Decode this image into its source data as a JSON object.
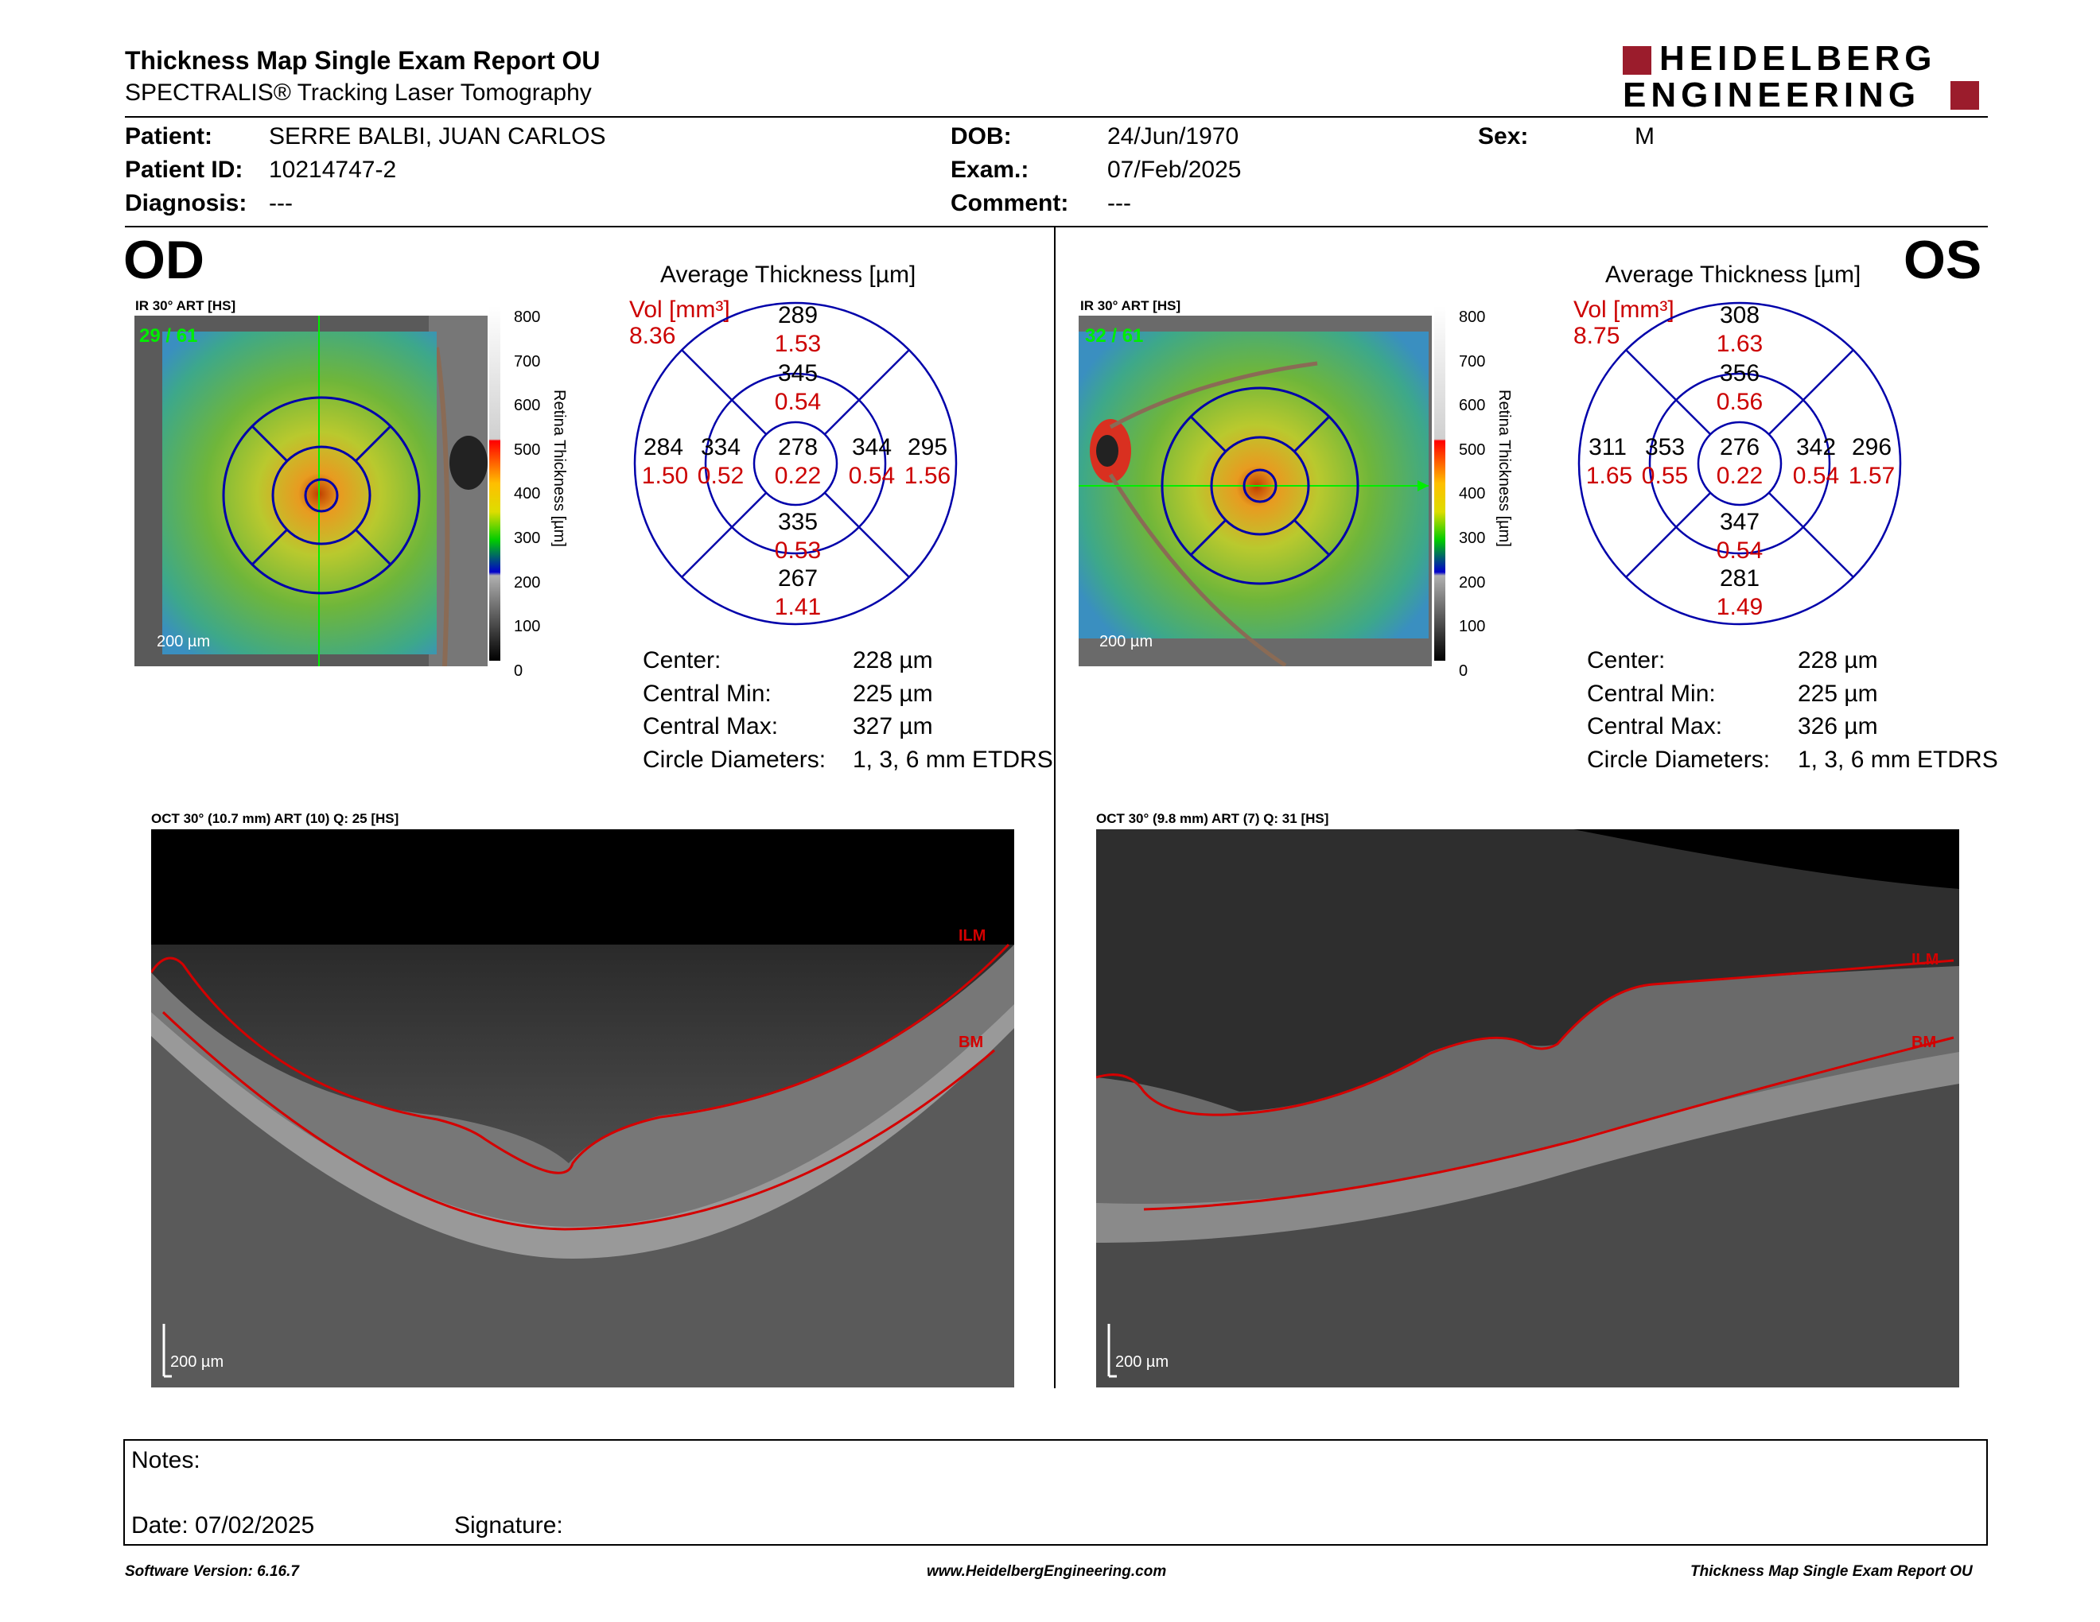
{
  "header": {
    "title": "Thickness Map Single Exam Report OU",
    "subtitle": "SPECTRALIS® Tracking Laser Tomography",
    "logo_line1": "HEIDELBERG",
    "logo_line2": "ENGINEERING"
  },
  "patient": {
    "patient_label": "Patient:",
    "patient_value": "SERRE BALBI, JUAN CARLOS",
    "id_label": "Patient ID:",
    "id_value": "10214747-2",
    "diagnosis_label": "Diagnosis:",
    "diagnosis_value": "---",
    "dob_label": "DOB:",
    "dob_value": "24/Jun/1970",
    "exam_label": "Exam.:",
    "exam_value": "07/Feb/2025",
    "comment_label": "Comment:",
    "comment_value": "---",
    "sex_label": "Sex:",
    "sex_value": "M"
  },
  "scale": {
    "ticks": [
      "800",
      "700",
      "600",
      "500",
      "400",
      "300",
      "200",
      "100",
      "0"
    ],
    "label": "Retina Thickness [µm]"
  },
  "od": {
    "eye": "OD",
    "ir_caption": "IR 30° ART [HS]",
    "frames": "29 / 61",
    "scalebar": "200 µm",
    "avg_title": "Average Thickness [µm]",
    "vol_label": "Vol [mm³]",
    "vol_total": "8.36",
    "grid": {
      "center": [
        "278",
        "0.22"
      ],
      "inner_sup": [
        "345",
        "0.54"
      ],
      "inner_inf": [
        "335",
        "0.53"
      ],
      "inner_left": [
        "334",
        "0.52"
      ],
      "inner_right": [
        "344",
        "0.54"
      ],
      "outer_sup": [
        "289",
        "1.53"
      ],
      "outer_inf": [
        "267",
        "1.41"
      ],
      "outer_left": [
        "284",
        "1.50"
      ],
      "outer_right": [
        "295",
        "1.56"
      ]
    },
    "stats": [
      {
        "label": "Center:",
        "value": "228 µm"
      },
      {
        "label": "Central Min:",
        "value": "225 µm"
      },
      {
        "label": "Central Max:",
        "value": "327 µm"
      },
      {
        "label": "Circle Diameters:",
        "value": "1, 3, 6 mm ETDRS"
      }
    ],
    "oct_caption": "OCT 30° (10.7 mm) ART (10) Q: 25 [HS]",
    "oct_scalebar": "200 µm",
    "ilm": "ILM",
    "bm": "BM"
  },
  "os": {
    "eye": "OS",
    "ir_caption": "IR 30° ART [HS]",
    "frames": "32 / 61",
    "scalebar": "200 µm",
    "avg_title": "Average Thickness [µm]",
    "vol_label": "Vol [mm³]",
    "vol_total": "8.75",
    "grid": {
      "center": [
        "276",
        "0.22"
      ],
      "inner_sup": [
        "356",
        "0.56"
      ],
      "inner_inf": [
        "347",
        "0.54"
      ],
      "inner_left": [
        "353",
        "0.55"
      ],
      "inner_right": [
        "342",
        "0.54"
      ],
      "outer_sup": [
        "308",
        "1.63"
      ],
      "outer_inf": [
        "281",
        "1.49"
      ],
      "outer_left": [
        "311",
        "1.65"
      ],
      "outer_right": [
        "296",
        "1.57"
      ]
    },
    "stats": [
      {
        "label": "Center:",
        "value": "228 µm"
      },
      {
        "label": "Central Min:",
        "value": "225 µm"
      },
      {
        "label": "Central Max:",
        "value": "326 µm"
      },
      {
        "label": "Circle Diameters:",
        "value": "1, 3, 6 mm ETDRS"
      }
    ],
    "oct_caption": "OCT 30° (9.8 mm) ART (7) Q: 31 [HS]",
    "oct_scalebar": "200 µm",
    "ilm": "ILM",
    "bm": "BM"
  },
  "notes": {
    "notes_label": "Notes:",
    "date_label": "Date: 07/02/2025",
    "signature_label": "Signature:"
  },
  "footer": {
    "software": "Software Version: 6.16.7",
    "website": "www.HeidelbergEngineering.com",
    "report": "Thickness Map Single Exam Report OU"
  },
  "colors": {
    "grid_blue": "#0000aa",
    "vol_red": "#cc0000",
    "logo_red": "#9b1c2c",
    "oct_line_red": "#d40000"
  }
}
